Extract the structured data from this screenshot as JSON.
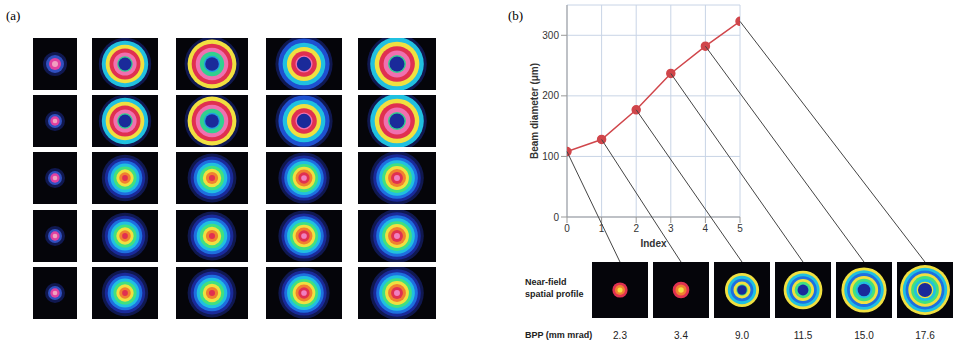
{
  "panel_labels": [
    "(a)",
    "(b)"
  ],
  "chart_data": {
    "type": "line",
    "x": [
      0,
      1,
      2,
      3,
      4,
      5
    ],
    "values": [
      108,
      128,
      177,
      237,
      282,
      323
    ],
    "color": "#d0464b",
    "marker": "circle",
    "xlim": [
      0,
      5
    ],
    "xticks": [
      0,
      1,
      2,
      3,
      4,
      5
    ],
    "ylim": [
      0,
      350
    ],
    "yticks": [
      0,
      100,
      200,
      300
    ],
    "x_label": "Index",
    "y_label": "Beam diameter (μm)",
    "grid": true
  },
  "profiles": {
    "row_label": "Near-field spatial profile",
    "bpp_label": "BPP (mm mrad)",
    "bpp": [
      2.3,
      3.4,
      9.0,
      11.5,
      15.0,
      17.6
    ],
    "bpp_labels": [
      "2.3",
      "3.4",
      "9.0",
      "11.5",
      "15.0",
      "17.6"
    ]
  }
}
